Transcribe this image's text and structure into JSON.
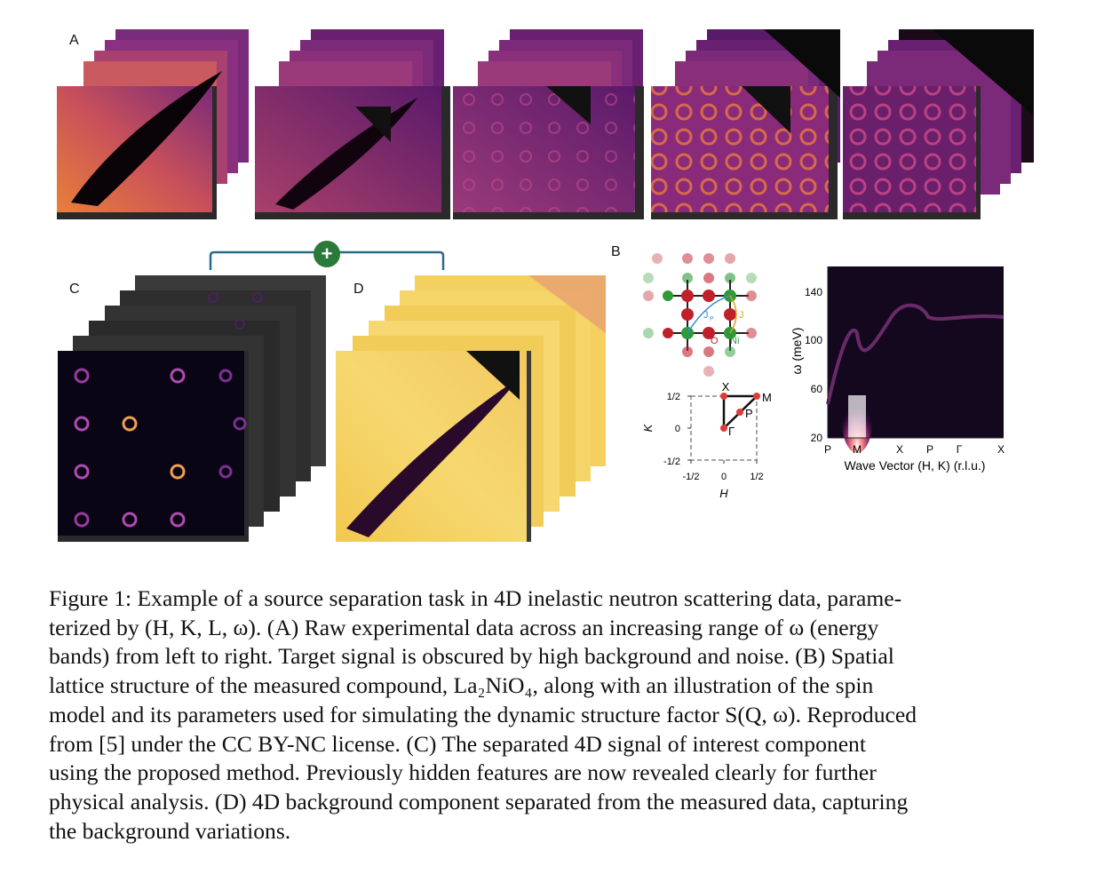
{
  "panels": {
    "a_label": "A",
    "b_label": "B",
    "c_label": "C",
    "d_label": "D",
    "plus_symbol": "+"
  },
  "lattice": {
    "atom_o": "O",
    "atom_ni": "Ni",
    "coupling_jp": "J",
    "coupling_jp_sub": "P",
    "coupling_j": "J",
    "colors": {
      "o": "#c0202a",
      "ni": "#2e9a3a",
      "jp_arc": "#3a8fd0",
      "j_arc": "#e0a020"
    }
  },
  "bz": {
    "xlabel": "H",
    "ylabel": "K",
    "xticks": [
      "-1/2",
      "0",
      "1/2"
    ],
    "yticks": [
      "1/2",
      "0",
      "-1/2"
    ],
    "points": [
      "X",
      "M",
      "P",
      "Γ"
    ]
  },
  "dispersion": {
    "ylabel": "ω (meV)",
    "xlabel": "Wave Vector (H, K) (r.l.u.)",
    "yticks": [
      "140",
      "100",
      "60",
      "20"
    ],
    "xticks": [
      "P",
      "M",
      "X",
      "P",
      "Γ",
      "X"
    ]
  },
  "caption": {
    "l1": "Figure 1: Example of a source separation task in 4D inelastic neutron scattering data, parame-",
    "l2": "terized by (H, K, L, ω). (A) Raw experimental data across an increasing range of ω (energy",
    "l3": "bands) from left to right. Target signal is obscured by high background and noise. (B) Spatial",
    "l4": "lattice structure of the measured compound, La₂NiO₄, along with an illustration of the spin",
    "l5": "model and its parameters used for simulating the dynamic structure factor S(Q, ω). Reproduced",
    "l6": "from [5] under the CC BY-NC license. (C) The separated 4D signal of interest component",
    "l7": "using the proposed method. Previously hidden features are now revealed clearly for further",
    "l8": "physical analysis. (D) 4D background component separated from the measured data, capturing",
    "l9": "the background variations."
  },
  "colors": {
    "raw_dark": "#2a0a3a",
    "raw_mid": "#8a2a7a",
    "raw_bright": "#f08a40",
    "signal_bg": "#0a0514",
    "ring": "#b04ab0",
    "ring_hot": "#f0a050",
    "background_yellow": "#f6d860",
    "frame": "#3a3a3a",
    "bracket": "#2a6a8a",
    "plus": "#2a7a3a"
  }
}
